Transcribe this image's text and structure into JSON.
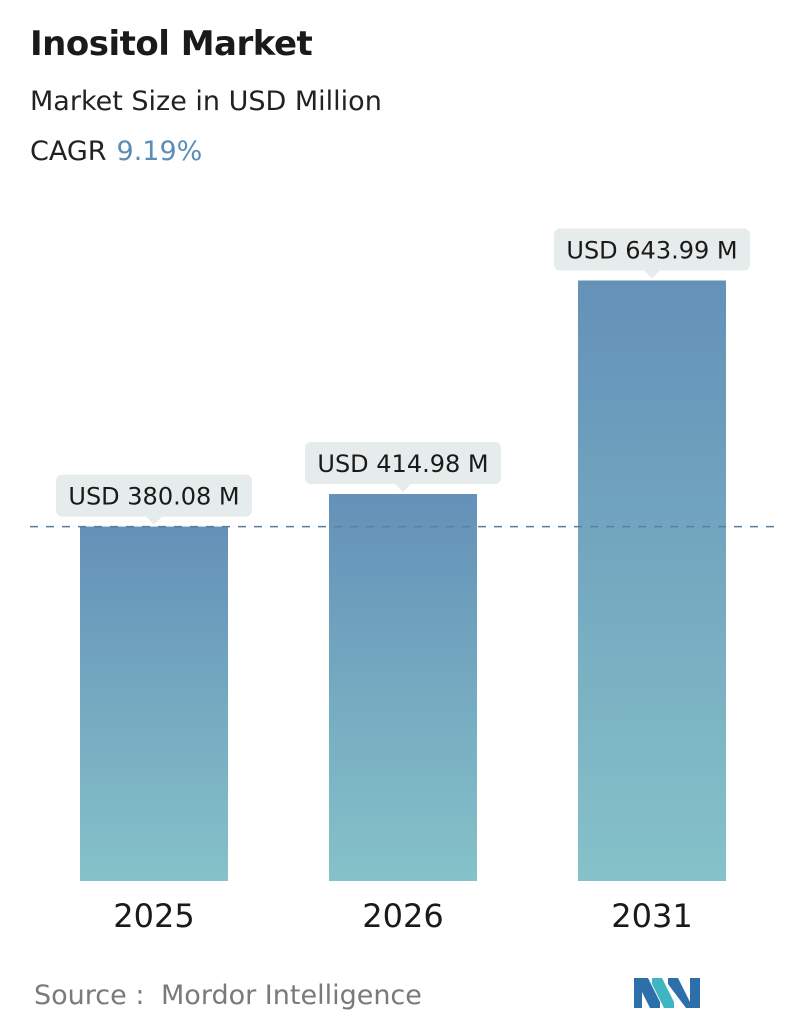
{
  "header": {
    "title": "Inositol Market",
    "subtitle": "Market Size in USD Million",
    "cagr_label": "CAGR",
    "cagr_value": "9.19%"
  },
  "colors": {
    "bar_top": "#6491b8",
    "bar_bottom": "#85c2c9",
    "cagr_accent": "#5b8db8",
    "callout_bg": "#e6eceb",
    "dashed_line": "#5b7f99",
    "logo_dark": "#2d6fa8",
    "logo_light": "#3fb5c4"
  },
  "chart_data": {
    "type": "bar",
    "categories": [
      "2025",
      "2026",
      "2031"
    ],
    "values": [
      380.08,
      414.98,
      643.99
    ],
    "value_labels": [
      "USD 380.08 M",
      "USD 414.98 M",
      "USD 643.99 M"
    ],
    "reference_line": 380.08,
    "grid": false,
    "legend": "none"
  },
  "footer": {
    "source_label": "Source :",
    "source_value": "Mordor Intelligence"
  },
  "logo": {
    "icon": "mordor-intelligence-logo-icon"
  }
}
